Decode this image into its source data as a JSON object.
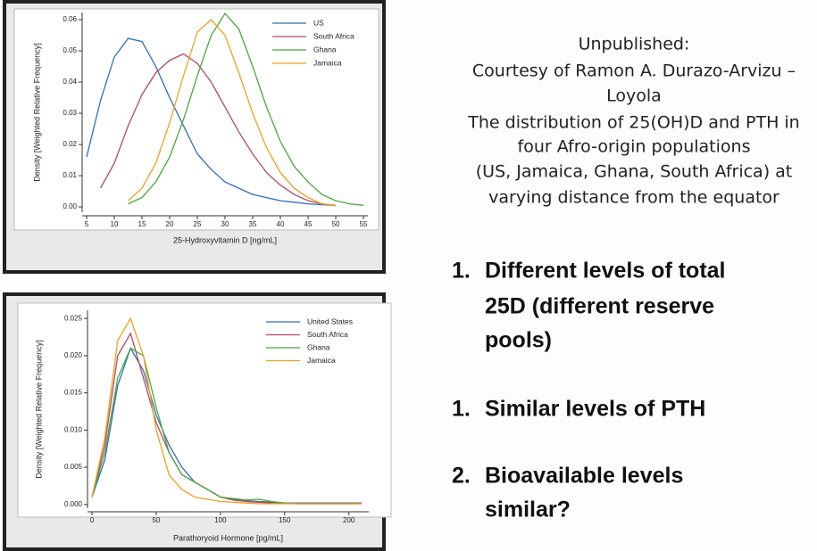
{
  "chart_data": [
    {
      "type": "line",
      "x_label": "25-Hydroxyvitamin D [ng/mL]",
      "y_label": "Density [Weighted Relative Frequency]",
      "x": [
        5,
        7.5,
        10,
        12.5,
        15,
        17.5,
        20,
        22.5,
        25,
        27.5,
        30,
        32.5,
        35,
        37.5,
        40,
        42.5,
        45,
        47.5,
        50,
        52.5,
        55
      ],
      "series": [
        {
          "name": "US",
          "color": "#2f6db8",
          "values": [
            0.016,
            0.034,
            0.048,
            0.054,
            0.053,
            0.045,
            0.035,
            0.026,
            0.017,
            0.012,
            0.008,
            0.006,
            0.004,
            0.003,
            0.002,
            0.0015,
            0.001,
            0.0007,
            0.0005,
            null,
            null
          ]
        },
        {
          "name": "South Africa",
          "color": "#b54a5e",
          "values": [
            null,
            0.006,
            0.014,
            0.026,
            0.036,
            0.043,
            0.047,
            0.049,
            0.046,
            0.04,
            0.032,
            0.024,
            0.017,
            0.011,
            0.007,
            0.004,
            0.002,
            0.001,
            0.0005,
            null,
            null
          ]
        },
        {
          "name": "Ghana",
          "color": "#4aa83c",
          "values": [
            null,
            null,
            null,
            0.001,
            0.003,
            0.008,
            0.016,
            0.028,
            0.042,
            0.055,
            0.062,
            0.057,
            0.045,
            0.032,
            0.021,
            0.013,
            0.008,
            0.004,
            0.002,
            0.001,
            0.0005
          ]
        },
        {
          "name": "Jamaica",
          "color": "#f0a020",
          "values": [
            null,
            null,
            null,
            0.002,
            0.006,
            0.014,
            0.027,
            0.042,
            0.056,
            0.06,
            0.055,
            0.043,
            0.03,
            0.019,
            0.011,
            0.006,
            0.003,
            0.001,
            0.0005,
            null,
            null
          ]
        }
      ],
      "xlim": [
        4.2,
        55.8
      ],
      "ylim": [
        -0.0017,
        0.0623
      ],
      "xticks": [
        5,
        10,
        15,
        20,
        25,
        30,
        35,
        40,
        45,
        50,
        55
      ],
      "yticks": [
        {
          "value": 0,
          "label": "0.00"
        },
        {
          "value": 0.01,
          "label": "0.01"
        },
        {
          "value": 0.02,
          "label": "0.02"
        },
        {
          "value": 0.03,
          "label": "0.03"
        },
        {
          "value": 0.04,
          "label": "0.04"
        },
        {
          "value": 0.05,
          "label": "0.05"
        },
        {
          "value": 0.06,
          "label": "0.06"
        }
      ]
    },
    {
      "type": "line",
      "x_label": "Parathoryoid Hormone [pg/mL]",
      "y_label": "Density [Weighted Relative Frequency]",
      "x": [
        0,
        10,
        20,
        30,
        40,
        50,
        60,
        70,
        80,
        90,
        100,
        110,
        120,
        130,
        140,
        150,
        160,
        170,
        180,
        190,
        200,
        210
      ],
      "series": [
        {
          "name": "United States",
          "color": "#2f6db8",
          "values": [
            0.001,
            0.006,
            0.016,
            0.021,
            0.018,
            0.012,
            0.008,
            0.005,
            0.003,
            0.002,
            0.001,
            0.0007,
            0.0005,
            0.0004,
            0.0003,
            0.0002,
            0.0002,
            0.0002,
            0.0002,
            0.0002,
            0.0002,
            0.0002
          ]
        },
        {
          "name": "South Africa",
          "color": "#b54a5e",
          "values": [
            0.001,
            0.008,
            0.02,
            0.023,
            0.017,
            0.011,
            0.007,
            0.004,
            0.003,
            0.002,
            0.001,
            0.0006,
            0.0004,
            0.0003,
            0.0002,
            0.0002,
            0.0001,
            0.0001,
            0.0001,
            0.0001,
            0.0001,
            0.0002
          ]
        },
        {
          "name": "Ghana",
          "color": "#4aa83c",
          "values": [
            0.001,
            0.007,
            0.017,
            0.021,
            0.02,
            0.013,
            0.007,
            0.004,
            0.003,
            0.002,
            0.001,
            0.0008,
            0.0006,
            0.0007,
            0.0004,
            0.0002,
            0.0001,
            0.0001,
            0.0001,
            0.0001,
            0.0001,
            0.0001
          ]
        },
        {
          "name": "Jamaica",
          "color": "#f0a020",
          "values": [
            0.001,
            0.009,
            0.022,
            0.025,
            0.02,
            0.01,
            0.004,
            0.002,
            0.001,
            0.0007,
            0.0004,
            0.0003,
            0.0002,
            0.0001,
            0.0001,
            0.0001,
            0.0001,
            0.0001,
            0.0001,
            0.0001,
            0.0001,
            0.0001
          ]
        }
      ],
      "xlim": [
        -3.5,
        215.5
      ],
      "ylim": [
        -0.0005,
        0.0261
      ],
      "xticks": [
        0,
        50,
        100,
        150,
        200
      ],
      "yticks": [
        {
          "value": 0,
          "label": "0.000"
        },
        {
          "value": 0.005,
          "label": "0.005"
        },
        {
          "value": 0.01,
          "label": "0.010"
        },
        {
          "value": 0.015,
          "label": "0.015"
        },
        {
          "value": 0.02,
          "label": "0.020"
        },
        {
          "value": 0.025,
          "label": "0.025"
        }
      ]
    }
  ],
  "note": {
    "lines": [
      "Unpublished:",
      "Courtesy of Ramon A. Durazo-Arvizu –",
      "Loyola",
      "The distribution of 25(OH)D and PTH in",
      "four Afro-origin populations",
      "(US, Jamaica, Ghana, South Africa) at",
      "varying distance from the equator"
    ]
  },
  "points": [
    {
      "number": "1.",
      "lines": [
        "Different levels of total",
        "25D (different reserve",
        "pools)"
      ]
    },
    {
      "number": "1.",
      "lines": [
        "Similar levels of PTH"
      ]
    },
    {
      "number": "2.",
      "lines": [
        "Bioavailable levels",
        "similar?"
      ]
    }
  ]
}
